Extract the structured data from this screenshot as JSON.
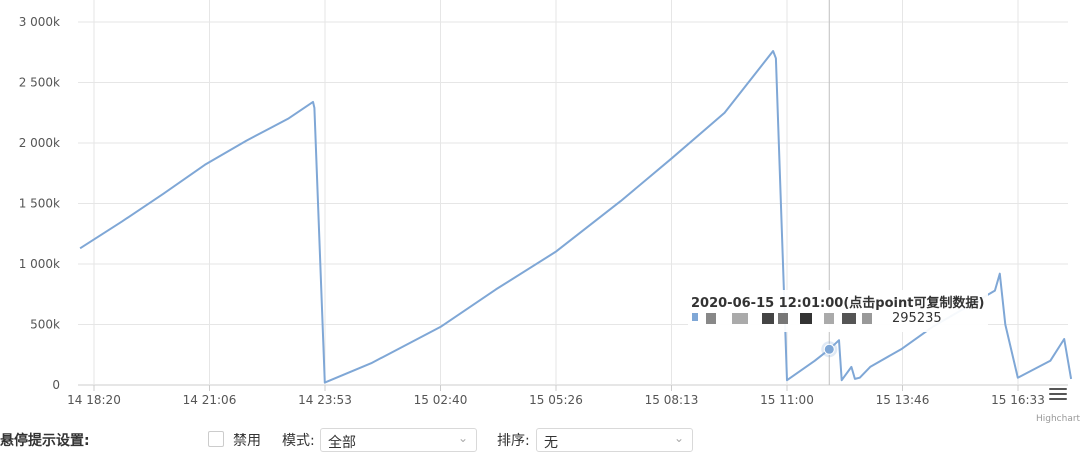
{
  "chart_data": {
    "type": "line",
    "xlabel": "",
    "ylabel": "",
    "x_ticks": [
      "14 18:20",
      "14 21:06",
      "14 23:53",
      "15 02:40",
      "15 05:26",
      "15 08:13",
      "15 11:00",
      "15 13:46",
      "15 16:33"
    ],
    "y_ticks": [
      "0",
      "500k",
      "1 000k",
      "1 500k",
      "2 000k",
      "2 500k",
      "3 000k"
    ],
    "ylim": [
      0,
      3000000
    ],
    "grid": true,
    "legend": "none",
    "series_color": "#7fa7d6",
    "series": [
      {
        "x": [
          "2020-06-14 18:00",
          "2020-06-14 19:00",
          "2020-06-14 20:00",
          "2020-06-14 21:00",
          "2020-06-14 22:00",
          "2020-06-14 23:00",
          "2020-06-14 23:36",
          "2020-06-14 23:38",
          "2020-06-14 23:53",
          "2020-06-15 01:00",
          "2020-06-15 02:40",
          "2020-06-15 04:00",
          "2020-06-15 05:26",
          "2020-06-15 07:00",
          "2020-06-15 08:13",
          "2020-06-15 09:30",
          "2020-06-15 10:40",
          "2020-06-15 10:44",
          "2020-06-15 11:00",
          "2020-06-15 11:40",
          "2020-06-15 12:01",
          "2020-06-15 12:15",
          "2020-06-15 12:19",
          "2020-06-15 12:33",
          "2020-06-15 12:38",
          "2020-06-15 12:45",
          "2020-06-15 13:00",
          "2020-06-15 13:46",
          "2020-06-15 14:30",
          "2020-06-15 15:30",
          "2020-06-15 16:00",
          "2020-06-15 16:07",
          "2020-06-15 16:15",
          "2020-06-15 16:33",
          "2020-06-15 17:20",
          "2020-06-15 17:40",
          "2020-06-15 17:50"
        ],
        "y": [
          1130000,
          1350000,
          1580000,
          1820000,
          2020000,
          2200000,
          2340000,
          2290000,
          20000,
          180000,
          480000,
          790000,
          1100000,
          1520000,
          1870000,
          2250000,
          2760000,
          2700000,
          40000,
          200000,
          295235,
          370000,
          40000,
          150000,
          50000,
          60000,
          150000,
          300000,
          480000,
          680000,
          780000,
          920000,
          500000,
          60000,
          200000,
          380000,
          50000
        ]
      }
    ],
    "hover_point": {
      "x": "2020-06-15 12:01",
      "y": 295235
    }
  },
  "tooltip": {
    "title": "2020-06-15 12:01:00(点击point可复制数据)",
    "value": "295235"
  },
  "credits": "Highcharts.com",
  "settings": {
    "label": "悬停提示设置:",
    "disable_label": "禁用",
    "mode_label": "模式:",
    "mode_value": "全部",
    "sort_label": "排序:",
    "sort_value": "无"
  }
}
